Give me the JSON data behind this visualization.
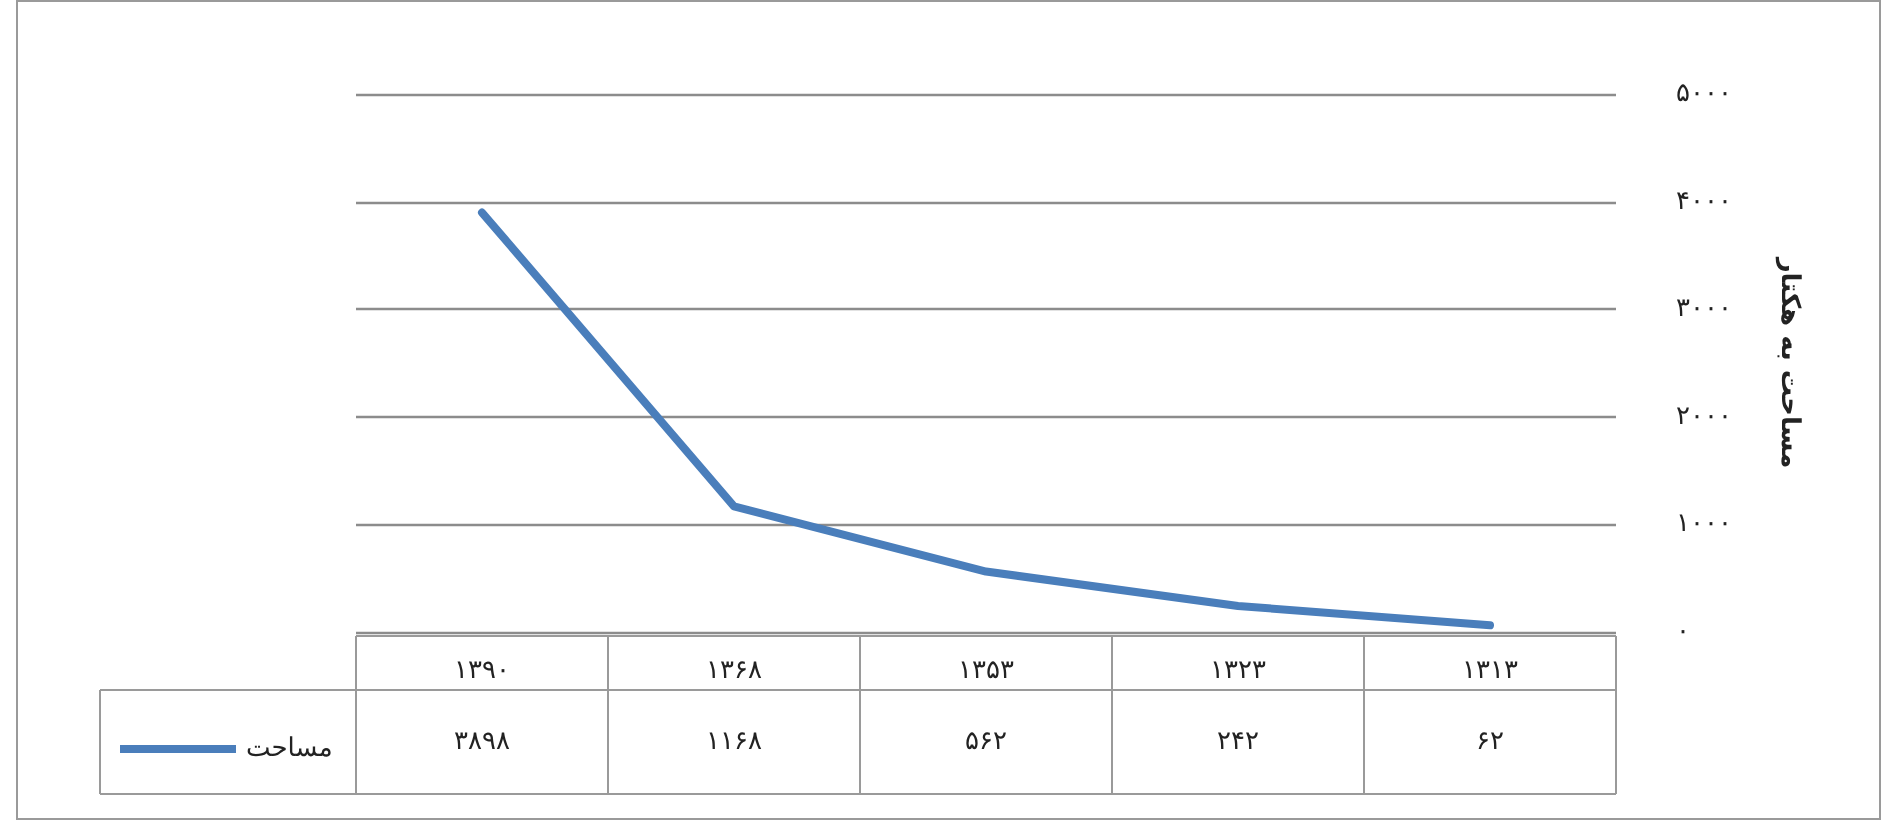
{
  "chart_data": {
    "type": "line",
    "ylabel": "مساحت به هکتار",
    "categories": [
      "۱۳۹۰",
      "۱۳۶۸",
      "۱۳۵۳",
      "۱۳۲۳",
      "۱۳۱۳"
    ],
    "series": [
      {
        "name": "مساحت",
        "color": "#4a7ebb",
        "values": [
          3898,
          1168,
          562,
          242,
          62
        ],
        "value_labels": [
          "۳۸۹۸",
          "۱۱۶۸",
          "۵۶۲",
          "۲۴۲",
          "۶۲"
        ]
      }
    ],
    "ylim": [
      0,
      5000
    ],
    "yticks": [
      {
        "value": 0,
        "label": "۰"
      },
      {
        "value": 1000,
        "label": "۱۰۰۰"
      },
      {
        "value": 2000,
        "label": "۲۰۰۰"
      },
      {
        "value": 3000,
        "label": "۳۰۰۰"
      },
      {
        "value": 4000,
        "label": "۴۰۰۰"
      },
      {
        "value": 5000,
        "label": "۵۰۰۰"
      }
    ],
    "grid": "y",
    "legend": "bottom left",
    "marker": "none",
    "line_style": "solid"
  }
}
